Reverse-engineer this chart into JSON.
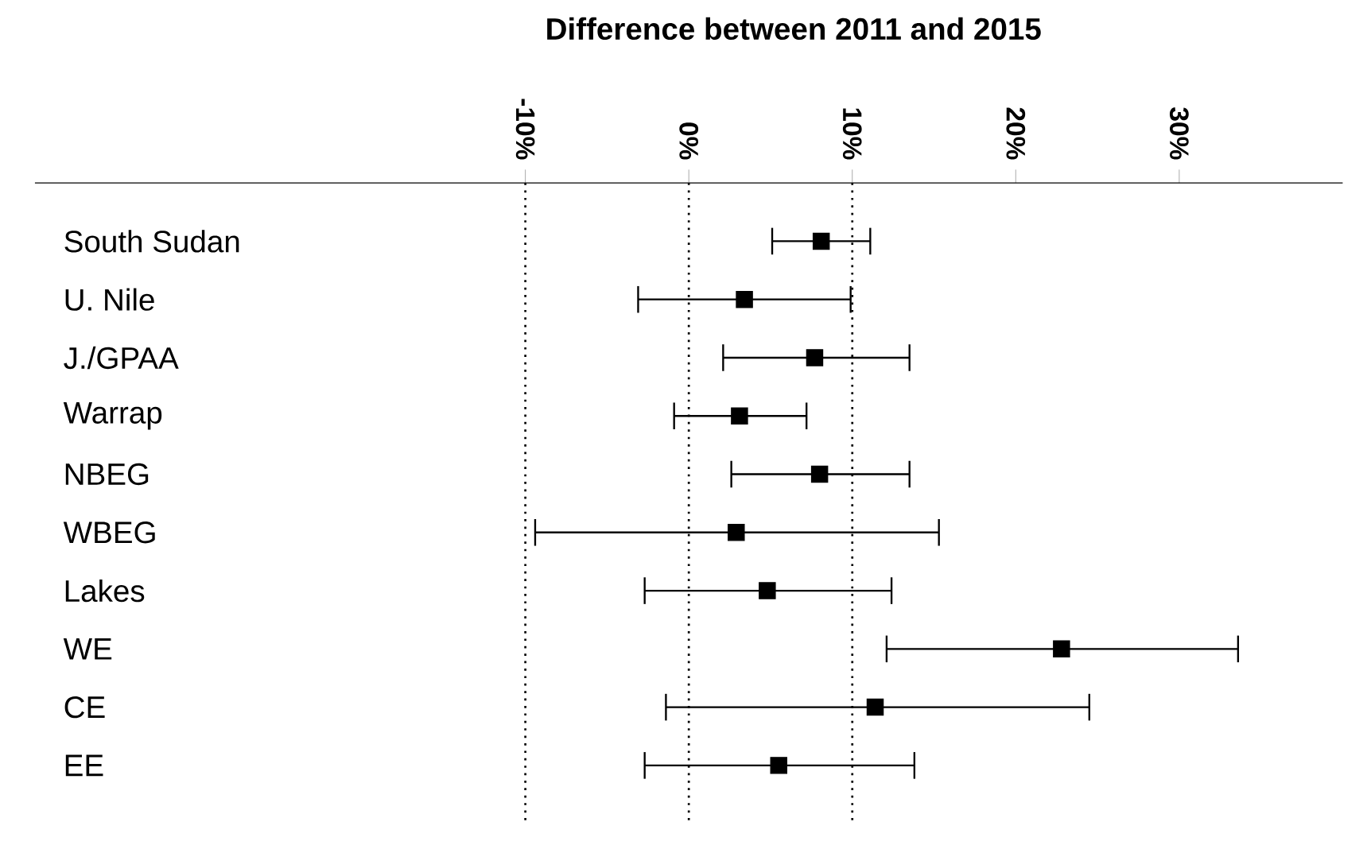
{
  "chart_data": {
    "type": "scatter",
    "orientation": "horizontal",
    "title": "Difference between 2011 and 2015",
    "categories": [
      "South Sudan",
      "U. Nile",
      "J./GPAA",
      "Warrap",
      "NBEG",
      "WBEG",
      "Lakes",
      "WE",
      "CE",
      "EE"
    ],
    "values": [
      8.1,
      3.4,
      7.7,
      3.1,
      8.0,
      2.9,
      4.8,
      22.8,
      11.4,
      5.5
    ],
    "errors": [
      [
        5.1,
        11.1
      ],
      [
        -3.1,
        9.9
      ],
      [
        2.1,
        13.5
      ],
      [
        -0.9,
        7.2
      ],
      [
        2.6,
        13.5
      ],
      [
        -9.4,
        15.3
      ],
      [
        -2.7,
        12.4
      ],
      [
        12.1,
        33.6
      ],
      [
        -1.4,
        24.5
      ],
      [
        -2.7,
        13.8
      ]
    ],
    "color": "#000000",
    "marker": "square",
    "grid": false,
    "xlim": [
      -40,
      40
    ],
    "xticks": [
      {
        "value": -10,
        "label": "-10%"
      },
      {
        "value": 0,
        "label": "0%"
      },
      {
        "value": 10,
        "label": "10%"
      },
      {
        "value": 20,
        "label": "20%"
      },
      {
        "value": 30,
        "label": "30%"
      }
    ],
    "ref_lines": [
      {
        "axis": "x",
        "value": -10,
        "line_style": "dotted"
      },
      {
        "axis": "x",
        "value": 0,
        "line_style": "dotted"
      },
      {
        "axis": "x",
        "value": 10,
        "line_style": "dotted"
      }
    ]
  }
}
